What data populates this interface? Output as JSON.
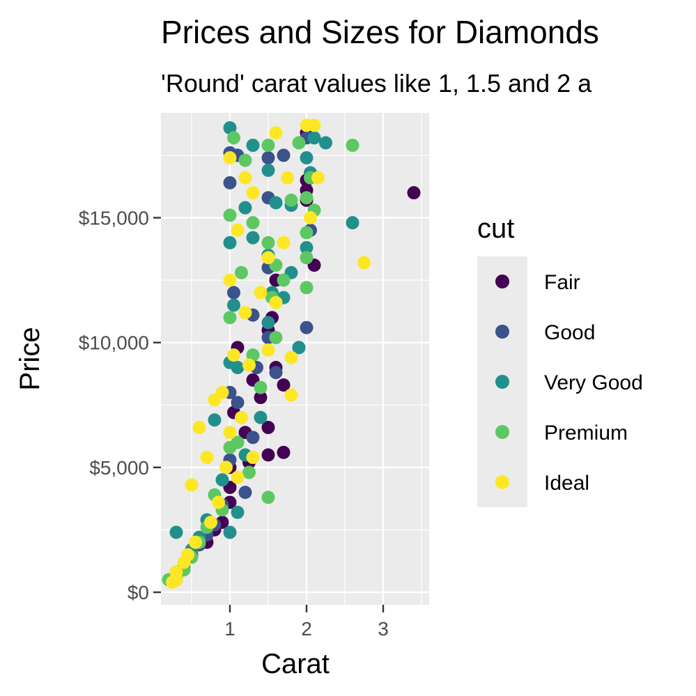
{
  "chart_data": {
    "type": "scatter",
    "title": "Prices and Sizes for Diamonds",
    "subtitle": "'Round' carat values like 1, 1.5 and 2 a",
    "xlabel": "Carat",
    "ylabel": "Price",
    "xlim": [
      0.1,
      3.6
    ],
    "ylim": [
      -500,
      19200
    ],
    "x_ticks": [
      {
        "value": 1,
        "label": "1"
      },
      {
        "value": 2,
        "label": "2"
      },
      {
        "value": 3,
        "label": "3"
      }
    ],
    "y_ticks": [
      {
        "value": 0,
        "label": "$0"
      },
      {
        "value": 5000,
        "label": "$5,000"
      },
      {
        "value": 10000,
        "label": "$10,000"
      },
      {
        "value": 15000,
        "label": "$15,000"
      }
    ],
    "grid": true,
    "legend": {
      "title": "cut",
      "position": "right",
      "entries": [
        {
          "label": "Fair",
          "color": "#440154"
        },
        {
          "label": "Good",
          "color": "#3b528b"
        },
        {
          "label": "Very Good",
          "color": "#21908c"
        },
        {
          "label": "Premium",
          "color": "#5dc863"
        },
        {
          "label": "Ideal",
          "color": "#fde725"
        }
      ]
    },
    "series": [
      {
        "name": "Fair",
        "color": "#440154",
        "points": [
          [
            0.9,
            2800
          ],
          [
            1.0,
            4200
          ],
          [
            1.0,
            3600
          ],
          [
            1.2,
            6400
          ],
          [
            1.5,
            5500
          ],
          [
            1.5,
            6600
          ],
          [
            1.6,
            9000
          ],
          [
            1.7,
            8300
          ],
          [
            1.7,
            5600
          ],
          [
            2.0,
            16100
          ],
          [
            2.0,
            15700
          ],
          [
            2.0,
            18400
          ],
          [
            2.1,
            13100
          ],
          [
            3.4,
            16000
          ],
          [
            1.05,
            7200
          ],
          [
            1.1,
            9800
          ],
          [
            0.7,
            2000
          ],
          [
            0.8,
            2500
          ],
          [
            1.3,
            8500
          ],
          [
            1.5,
            10500
          ],
          [
            1.6,
            12500
          ],
          [
            0.5,
            1500
          ],
          [
            1.25,
            5200
          ],
          [
            1.55,
            11000
          ],
          [
            2.0,
            16500
          ],
          [
            0.3,
            800
          ],
          [
            1.0,
            5000
          ],
          [
            1.4,
            7800
          ]
        ]
      },
      {
        "name": "Good",
        "color": "#3b528b",
        "points": [
          [
            0.3,
            500
          ],
          [
            0.5,
            1500
          ],
          [
            0.7,
            2300
          ],
          [
            1.0,
            16400
          ],
          [
            1.0,
            17600
          ],
          [
            1.1,
            17500
          ],
          [
            1.3,
            11100
          ],
          [
            1.5,
            10200
          ],
          [
            1.5,
            15800
          ],
          [
            1.5,
            17400
          ],
          [
            1.7,
            17500
          ],
          [
            2.0,
            10600
          ],
          [
            2.0,
            18200
          ],
          [
            1.2,
            4000
          ],
          [
            1.0,
            5300
          ],
          [
            0.8,
            2700
          ],
          [
            1.1,
            7600
          ],
          [
            1.6,
            8800
          ],
          [
            1.3,
            6200
          ],
          [
            1.9,
            9800
          ],
          [
            2.05,
            14500
          ],
          [
            1.05,
            12000
          ],
          [
            1.35,
            9000
          ],
          [
            0.6,
            1900
          ],
          [
            1.5,
            13000
          ],
          [
            1.0,
            8000
          ],
          [
            0.9,
            3500
          ]
        ]
      },
      {
        "name": "Very Good",
        "color": "#21908c",
        "points": [
          [
            0.3,
            2400
          ],
          [
            0.3,
            700
          ],
          [
            0.5,
            1700
          ],
          [
            0.7,
            2900
          ],
          [
            0.8,
            6900
          ],
          [
            1.0,
            18600
          ],
          [
            1.0,
            14000
          ],
          [
            1.1,
            9000
          ],
          [
            1.2,
            15400
          ],
          [
            1.3,
            14200
          ],
          [
            1.5,
            16900
          ],
          [
            1.5,
            13500
          ],
          [
            1.6,
            15600
          ],
          [
            1.8,
            12800
          ],
          [
            1.8,
            15500
          ],
          [
            1.9,
            9800
          ],
          [
            2.0,
            17400
          ],
          [
            2.0,
            13800
          ],
          [
            2.1,
            18200
          ],
          [
            2.25,
            18000
          ],
          [
            2.6,
            14800
          ],
          [
            1.0,
            2400
          ],
          [
            1.2,
            5500
          ],
          [
            1.4,
            7000
          ],
          [
            1.5,
            10800
          ],
          [
            1.05,
            11500
          ],
          [
            0.6,
            2200
          ],
          [
            0.9,
            4500
          ],
          [
            1.1,
            3200
          ],
          [
            1.7,
            11800
          ],
          [
            2.05,
            16800
          ],
          [
            1.3,
            17900
          ],
          [
            1.55,
            12000
          ],
          [
            1.0,
            9200
          ],
          [
            0.4,
            1000
          ]
        ]
      },
      {
        "name": "Premium",
        "color": "#5dc863",
        "points": [
          [
            0.2,
            500
          ],
          [
            0.3,
            600
          ],
          [
            0.5,
            1400
          ],
          [
            0.7,
            2600
          ],
          [
            0.8,
            3900
          ],
          [
            1.0,
            15100
          ],
          [
            1.0,
            11000
          ],
          [
            1.05,
            18200
          ],
          [
            1.2,
            17300
          ],
          [
            1.3,
            14800
          ],
          [
            1.5,
            3800
          ],
          [
            1.5,
            17900
          ],
          [
            1.6,
            13100
          ],
          [
            1.8,
            15700
          ],
          [
            1.9,
            18000
          ],
          [
            2.0,
            14400
          ],
          [
            2.0,
            13400
          ],
          [
            2.0,
            12200
          ],
          [
            2.1,
            15300
          ],
          [
            2.6,
            17900
          ],
          [
            1.1,
            6000
          ],
          [
            1.3,
            9500
          ],
          [
            1.55,
            11800
          ],
          [
            1.0,
            5800
          ],
          [
            0.9,
            3300
          ],
          [
            1.4,
            8200
          ],
          [
            1.7,
            12500
          ],
          [
            2.05,
            16600
          ],
          [
            0.6,
            2000
          ],
          [
            1.25,
            4800
          ],
          [
            1.5,
            14000
          ],
          [
            2.0,
            15800
          ],
          [
            1.15,
            12800
          ],
          [
            0.4,
            900
          ],
          [
            1.6,
            10200
          ]
        ]
      },
      {
        "name": "Ideal",
        "color": "#fde725",
        "points": [
          [
            0.25,
            400
          ],
          [
            0.3,
            500
          ],
          [
            0.3,
            800
          ],
          [
            0.4,
            1200
          ],
          [
            0.5,
            4300
          ],
          [
            0.6,
            6600
          ],
          [
            0.7,
            5400
          ],
          [
            0.8,
            7700
          ],
          [
            0.9,
            8000
          ],
          [
            1.0,
            17400
          ],
          [
            1.0,
            12500
          ],
          [
            1.1,
            14500
          ],
          [
            1.2,
            16600
          ],
          [
            1.3,
            16000
          ],
          [
            1.5,
            13400
          ],
          [
            1.6,
            18400
          ],
          [
            1.75,
            16600
          ],
          [
            1.8,
            7900
          ],
          [
            1.8,
            9400
          ],
          [
            2.0,
            18700
          ],
          [
            2.1,
            18700
          ],
          [
            2.15,
            16600
          ],
          [
            2.75,
            13200
          ],
          [
            1.05,
            9500
          ],
          [
            1.15,
            7000
          ],
          [
            1.3,
            5400
          ],
          [
            1.5,
            9700
          ],
          [
            0.75,
            2800
          ],
          [
            0.55,
            2000
          ],
          [
            1.4,
            12000
          ],
          [
            1.0,
            6400
          ],
          [
            1.2,
            11200
          ],
          [
            0.95,
            5000
          ],
          [
            1.6,
            11600
          ],
          [
            2.05,
            15000
          ],
          [
            0.85,
            3600
          ],
          [
            1.7,
            14000
          ],
          [
            1.25,
            9100
          ],
          [
            0.45,
            1500
          ],
          [
            1.1,
            4600
          ]
        ]
      }
    ]
  }
}
